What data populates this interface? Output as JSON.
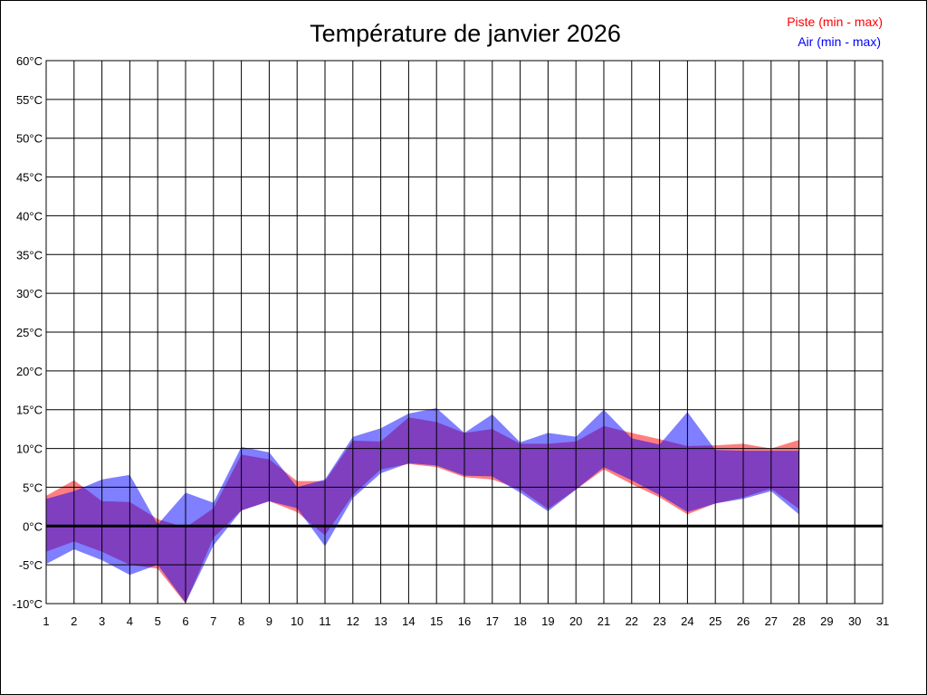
{
  "chart_data": {
    "type": "area",
    "title": "Température de janvier 2026",
    "x": [
      1,
      2,
      3,
      4,
      5,
      6,
      7,
      8,
      9,
      10,
      11,
      12,
      13,
      14,
      15,
      16,
      17,
      18,
      19,
      20,
      21,
      22,
      23,
      24,
      25,
      26,
      27,
      28,
      29,
      30,
      31
    ],
    "x_tick_labels": [
      "1",
      "2",
      "3",
      "4",
      "5",
      "6",
      "7",
      "8",
      "9",
      "10",
      "11",
      "12",
      "13",
      "14",
      "15",
      "16",
      "17",
      "18",
      "19",
      "20",
      "21",
      "22",
      "23",
      "24",
      "25",
      "26",
      "27",
      "28",
      "29",
      "30",
      "31"
    ],
    "y_ticks": [
      -10,
      -5,
      0,
      5,
      10,
      15,
      20,
      25,
      30,
      35,
      40,
      45,
      50,
      55,
      60
    ],
    "y_tick_labels": [
      "-10°C",
      "-5°C",
      "0°C",
      "5°C",
      "10°C",
      "15°C",
      "20°C",
      "25°C",
      "30°C",
      "35°C",
      "40°C",
      "45°C",
      "50°C",
      "55°C",
      "60°C"
    ],
    "xlim": [
      1,
      31
    ],
    "ylim": [
      -10,
      60
    ],
    "grid": true,
    "zero_line": true,
    "legend_position": "top-right",
    "series": [
      {
        "name": "Piste (min - max)",
        "color": "#ff0000",
        "min": [
          -3.3,
          -2.0,
          -3.3,
          -5.0,
          -5.5,
          -10.0,
          -1.5,
          2.0,
          3.2,
          1.8,
          -1.2,
          4.0,
          7.3,
          8.0,
          7.6,
          6.3,
          6.0,
          4.7,
          2.2,
          4.7,
          7.3,
          5.4,
          3.7,
          1.5,
          2.9,
          3.7,
          4.8,
          2.2
        ],
        "max": [
          3.9,
          5.9,
          3.2,
          3.1,
          0.9,
          -0.2,
          2.3,
          9.2,
          8.6,
          5.8,
          5.8,
          11.0,
          10.9,
          14.0,
          13.4,
          12.0,
          12.5,
          10.6,
          10.6,
          10.9,
          12.9,
          12.0,
          11.2,
          10.3,
          10.4,
          10.6,
          10.0,
          11.1
        ]
      },
      {
        "name": "Air (min - max)",
        "color": "#0000ff",
        "min": [
          -4.9,
          -3.0,
          -4.4,
          -6.3,
          -5.0,
          -9.9,
          -2.5,
          2.0,
          3.2,
          2.3,
          -2.6,
          3.6,
          6.8,
          8.1,
          7.8,
          6.5,
          6.4,
          4.3,
          1.9,
          4.7,
          7.6,
          5.9,
          4.0,
          1.8,
          2.9,
          3.5,
          4.5,
          1.5
        ],
        "max": [
          3.5,
          4.5,
          6.0,
          6.6,
          0.2,
          4.3,
          3.0,
          10.2,
          9.5,
          5.0,
          6.0,
          11.5,
          12.6,
          14.5,
          15.2,
          12.0,
          14.4,
          10.8,
          12.0,
          11.5,
          15.0,
          11.3,
          10.5,
          14.7,
          9.8,
          9.7,
          9.7,
          9.7
        ]
      }
    ]
  }
}
